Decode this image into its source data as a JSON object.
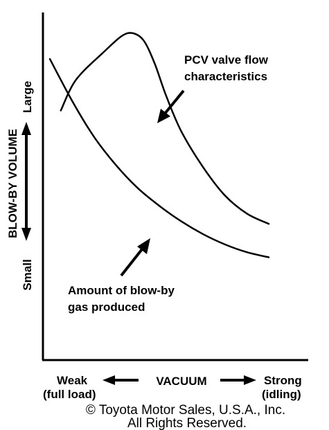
{
  "chart_data": {
    "type": "line",
    "title": "",
    "ylabel": "BLOW-BY VOLUME",
    "y_low_label": "Small",
    "y_high_label": "Large",
    "xlabel": "VACUUM",
    "x_low_label_line1": "Weak",
    "x_low_label_line2": "(full load)",
    "x_high_label_line1": "Strong",
    "x_high_label_line2": "(idling)",
    "grid": false,
    "legend": "none",
    "series": [
      {
        "name": "PCV valve flow characteristics",
        "label_line1": "PCV valve flow",
        "label_line2": "characteristics",
        "x": [
          0.05,
          0.12,
          0.25,
          0.33,
          0.38,
          0.43,
          0.48,
          0.53,
          0.6,
          0.7,
          0.8,
          0.9,
          1.0
        ],
        "y": [
          0.7,
          0.82,
          0.93,
          0.99,
          1.0,
          0.97,
          0.88,
          0.76,
          0.62,
          0.48,
          0.37,
          0.3,
          0.26
        ]
      },
      {
        "name": "Amount of blow-by gas produced",
        "label_line1": "Amount of blow-by",
        "label_line2": "gas produced",
        "x": [
          0.0,
          0.1,
          0.2,
          0.3,
          0.4,
          0.5,
          0.6,
          0.7,
          0.8,
          0.9,
          1.0
        ],
        "y": [
          0.9,
          0.74,
          0.6,
          0.49,
          0.4,
          0.33,
          0.27,
          0.22,
          0.18,
          0.15,
          0.13
        ]
      }
    ],
    "annotations": [
      "PCV valve flow characteristics",
      "Amount of blow-by gas produced"
    ]
  },
  "copyright": {
    "line1": "© Toyota Motor Sales, U.S.A., Inc.",
    "line2": "All Rights Reserved."
  },
  "colors": {
    "ink": "#000000",
    "background": "#ffffff"
  }
}
